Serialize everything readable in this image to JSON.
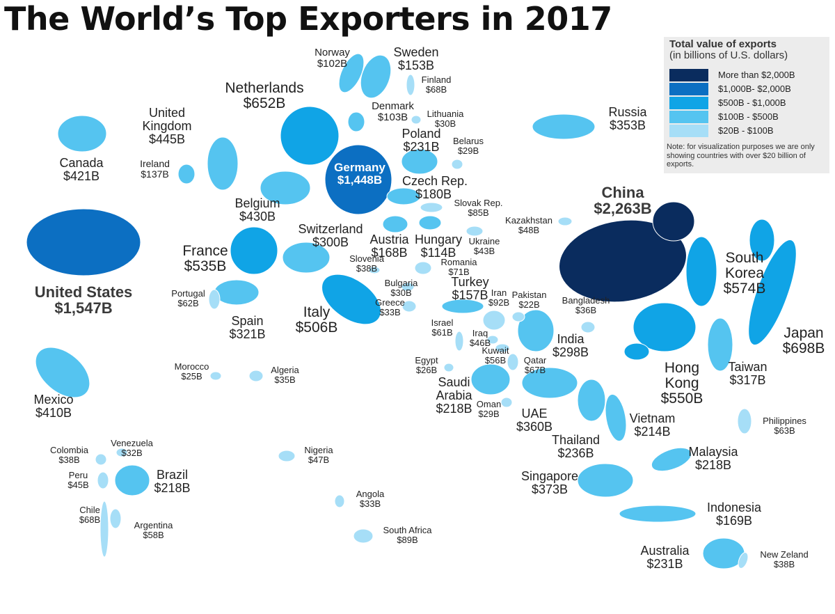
{
  "title": "The World’s Top Exporters in 2017",
  "legend": {
    "title": "Total value of exports",
    "subtitle": "(in billions of U.S. dollars)",
    "items": [
      {
        "label": "More than $2,000B",
        "color": "#0a2c5e"
      },
      {
        "label": "$1,000B- $2,000B",
        "color": "#0c6fc2"
      },
      {
        "label": "$500B - $1,000B",
        "color": "#10a4e6"
      },
      {
        "label": "$100B - $500B",
        "color": "#55c4f0"
      },
      {
        "label": "$20B - $100B",
        "color": "#a6def7"
      }
    ],
    "note": "Note: for visualization purposes we are only showing countries with over $20 billion of exports."
  },
  "countries": [
    {
      "name": "United States",
      "value": "$1,547B",
      "tier": 1
    },
    {
      "name": "China",
      "value": "$2,263B",
      "tier": 0
    },
    {
      "name": "Germany",
      "value": "$1,448B",
      "tier": 1
    },
    {
      "name": "Japan",
      "value": "$698B",
      "tier": 2
    },
    {
      "name": "Netherlands",
      "value": "$652B",
      "tier": 2
    },
    {
      "name": "South Korea",
      "value": "$574B",
      "tier": 2
    },
    {
      "name": "Hong Kong",
      "value": "$550B",
      "tier": 2
    },
    {
      "name": "France",
      "value": "$535B",
      "tier": 2
    },
    {
      "name": "Italy",
      "value": "$506B",
      "tier": 2
    },
    {
      "name": "United Kingdom",
      "value": "$445B",
      "tier": 3
    },
    {
      "name": "Belgium",
      "value": "$430B",
      "tier": 3
    },
    {
      "name": "Canada",
      "value": "$421B",
      "tier": 3
    },
    {
      "name": "Mexico",
      "value": "$410B",
      "tier": 3
    },
    {
      "name": "Singapore",
      "value": "$373B",
      "tier": 3
    },
    {
      "name": "UAE",
      "value": "$360B",
      "tier": 3
    },
    {
      "name": "Russia",
      "value": "$353B",
      "tier": 3
    },
    {
      "name": "Spain",
      "value": "$321B",
      "tier": 3
    },
    {
      "name": "Taiwan",
      "value": "$317B",
      "tier": 3
    },
    {
      "name": "Switzerland",
      "value": "$300B",
      "tier": 3
    },
    {
      "name": "India",
      "value": "$298B",
      "tier": 3
    },
    {
      "name": "Thailand",
      "value": "$236B",
      "tier": 3
    },
    {
      "name": "Poland",
      "value": "$231B",
      "tier": 3
    },
    {
      "name": "Australia",
      "value": "$231B",
      "tier": 3
    },
    {
      "name": "Saudi Arabia",
      "value": "$218B",
      "tier": 3
    },
    {
      "name": "Brazil",
      "value": "$218B",
      "tier": 3
    },
    {
      "name": "Malaysia",
      "value": "$218B",
      "tier": 3
    },
    {
      "name": "Vietnam",
      "value": "$214B",
      "tier": 3
    },
    {
      "name": "Czech Rep.",
      "value": "$180B",
      "tier": 3
    },
    {
      "name": "Indonesia",
      "value": "$169B",
      "tier": 3
    },
    {
      "name": "Austria",
      "value": "$168B",
      "tier": 3
    },
    {
      "name": "Turkey",
      "value": "$157B",
      "tier": 3
    },
    {
      "name": "Sweden",
      "value": "$153B",
      "tier": 3
    },
    {
      "name": "Ireland",
      "value": "$137B",
      "tier": 3
    },
    {
      "name": "Hungary",
      "value": "$114B",
      "tier": 3
    },
    {
      "name": "Denmark",
      "value": "$103B",
      "tier": 3
    },
    {
      "name": "Norway",
      "value": "$102B",
      "tier": 3
    },
    {
      "name": "Iran",
      "value": "$92B",
      "tier": 4
    },
    {
      "name": "South Africa",
      "value": "$89B",
      "tier": 4
    },
    {
      "name": "Slovak Rep.",
      "value": "$85B",
      "tier": 4
    },
    {
      "name": "Romania",
      "value": "$71B",
      "tier": 4
    },
    {
      "name": "Finland",
      "value": "$68B",
      "tier": 4
    },
    {
      "name": "Chile",
      "value": "$68B",
      "tier": 4
    },
    {
      "name": "Qatar",
      "value": "$67B",
      "tier": 4
    },
    {
      "name": "Philippines",
      "value": "$63B",
      "tier": 4
    },
    {
      "name": "Portugal",
      "value": "$62B",
      "tier": 4
    },
    {
      "name": "Israel",
      "value": "$61B",
      "tier": 4
    },
    {
      "name": "Argentina",
      "value": "$58B",
      "tier": 4
    },
    {
      "name": "Kuwait",
      "value": "$56B",
      "tier": 4
    },
    {
      "name": "Kazakhstan",
      "value": "$48B",
      "tier": 4
    },
    {
      "name": "Nigeria",
      "value": "$47B",
      "tier": 4
    },
    {
      "name": "Iraq",
      "value": "$46B",
      "tier": 4
    },
    {
      "name": "Peru",
      "value": "$45B",
      "tier": 4
    },
    {
      "name": "Ukraine",
      "value": "$43B",
      "tier": 4
    },
    {
      "name": "Slovenia",
      "value": "$38B",
      "tier": 4
    },
    {
      "name": "Colombia",
      "value": "$38B",
      "tier": 4
    },
    {
      "name": "New Zeland",
      "value": "$38B",
      "tier": 4
    },
    {
      "name": "Bangladesh",
      "value": "$36B",
      "tier": 4
    },
    {
      "name": "Algeria",
      "value": "$35B",
      "tier": 4
    },
    {
      "name": "Greece",
      "value": "$33B",
      "tier": 4
    },
    {
      "name": "Angola",
      "value": "$33B",
      "tier": 4
    },
    {
      "name": "Venezuela",
      "value": "$32B",
      "tier": 4
    },
    {
      "name": "Lithuania",
      "value": "$30B",
      "tier": 4
    },
    {
      "name": "Bulgaria",
      "value": "$30B",
      "tier": 4
    },
    {
      "name": "Belarus",
      "value": "$29B",
      "tier": 4
    },
    {
      "name": "Oman",
      "value": "$29B",
      "tier": 4
    },
    {
      "name": "Egypt",
      "value": "$26B",
      "tier": 4
    },
    {
      "name": "Morocco",
      "value": "$25B",
      "tier": 4
    },
    {
      "name": "Pakistan",
      "value": "$22B",
      "tier": 4
    }
  ]
}
